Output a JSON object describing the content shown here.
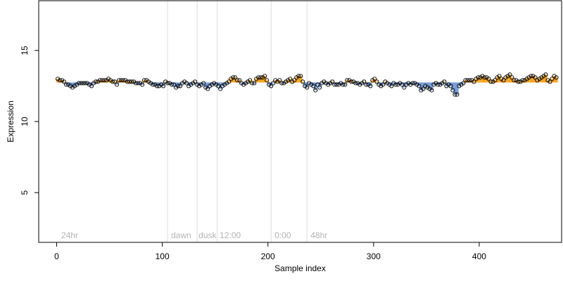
{
  "chart_data": {
    "type": "scatter",
    "xlabel": "Sample index",
    "ylabel": "Expression",
    "xlim": [
      -17,
      478
    ],
    "ylim": [
      1.5,
      18.5
    ],
    "x_ticks": [
      0,
      100,
      200,
      300,
      400
    ],
    "y_ticks": [
      5,
      10,
      15
    ],
    "grid": false,
    "vertical_lines": [
      105,
      133,
      152,
      203,
      237
    ],
    "annotations": [
      {
        "x": 3,
        "text": "24hr"
      },
      {
        "x": 107,
        "text": "dawn"
      },
      {
        "x": 133,
        "text": "dusk"
      },
      {
        "x": 153,
        "text": "12:00"
      },
      {
        "x": 205,
        "text": "0:00"
      },
      {
        "x": 239,
        "text": "48hr"
      }
    ],
    "baseline": 12.75,
    "colors": {
      "point_edge": "#000000",
      "above_baseline": "#f5a623",
      "below_baseline": "#7b9fd6",
      "vline": "#dcdcdc",
      "annotation": "#b3b3b3",
      "axis": "#000000"
    },
    "series": [
      {
        "x_start": 1,
        "x_step": 2,
        "values": [
          13.0,
          12.9,
          12.9,
          12.8,
          12.6,
          12.6,
          12.5,
          12.4,
          12.5,
          12.6,
          12.7,
          12.7,
          12.7,
          12.7,
          12.7,
          12.6,
          12.5,
          12.7,
          12.8,
          12.8,
          12.9,
          12.9,
          12.9,
          12.9,
          13.0,
          12.9,
          12.8,
          12.8,
          12.6,
          12.9,
          12.9,
          12.9,
          12.9,
          12.8,
          12.8,
          12.8,
          12.8,
          12.7,
          12.7,
          12.7,
          12.6,
          12.9,
          12.9,
          12.8,
          12.7,
          12.6,
          12.6,
          12.5,
          12.5,
          12.6,
          12.5,
          12.8,
          12.7,
          12.7,
          12.6,
          12.6,
          12.4,
          12.5,
          12.5,
          12.7,
          12.8,
          12.7,
          12.5,
          12.6,
          12.7,
          12.8,
          12.6,
          12.5,
          12.6,
          12.7,
          12.4,
          12.3,
          12.5,
          12.6,
          12.7,
          12.6,
          12.5,
          12.3,
          12.5,
          12.6,
          12.7,
          12.8,
          13.0,
          13.1,
          13.1,
          12.9,
          12.9,
          12.7,
          12.6,
          12.7,
          12.8,
          12.9,
          12.7,
          12.7,
          13.0,
          13.1,
          13.1,
          13.1,
          13.2,
          12.9,
          12.6,
          12.5,
          12.7,
          12.9,
          12.8,
          12.9,
          12.7,
          12.7,
          12.8,
          12.9,
          13.0,
          12.8,
          12.9,
          13.1,
          13.2,
          13.2,
          12.8,
          12.5,
          12.4,
          12.7,
          12.6,
          12.5,
          12.2,
          12.6,
          12.4,
          12.7,
          12.8,
          12.7,
          12.6,
          12.7,
          12.8,
          12.6,
          12.6,
          12.6,
          12.7,
          12.6,
          12.6,
          12.9,
          12.9,
          12.8,
          12.8,
          12.7,
          12.7,
          12.6,
          12.7,
          12.8,
          12.6,
          12.6,
          12.5,
          12.9,
          13.0,
          12.8,
          12.6,
          12.5,
          12.6,
          12.8,
          12.7,
          12.6,
          12.5,
          12.7,
          12.6,
          12.6,
          12.7,
          12.6,
          12.4,
          12.6,
          12.7,
          12.6,
          12.7,
          12.7,
          12.6,
          12.5,
          12.2,
          12.3,
          12.5,
          12.4,
          12.3,
          12.2,
          12.6,
          12.7,
          12.6,
          12.6,
          12.7,
          12.8,
          12.5,
          12.6,
          12.5,
          12.2,
          11.9,
          11.9,
          12.5,
          12.6,
          12.7,
          12.9,
          12.9,
          12.9,
          12.9,
          12.8,
          13.0,
          13.1,
          13.1,
          13.2,
          13.1,
          13.1,
          13.0,
          12.8,
          12.8,
          12.9,
          13.1,
          13.2,
          13.0,
          12.9,
          13.1,
          13.2,
          13.3,
          13.1,
          12.9,
          12.9,
          12.8,
          12.8,
          12.9,
          12.9,
          13.0,
          13.1,
          13.2,
          13.2,
          13.1,
          12.9,
          13.0,
          13.1,
          13.2,
          13.3,
          12.9,
          12.8,
          13.0,
          13.2,
          13.1
        ]
      }
    ]
  }
}
